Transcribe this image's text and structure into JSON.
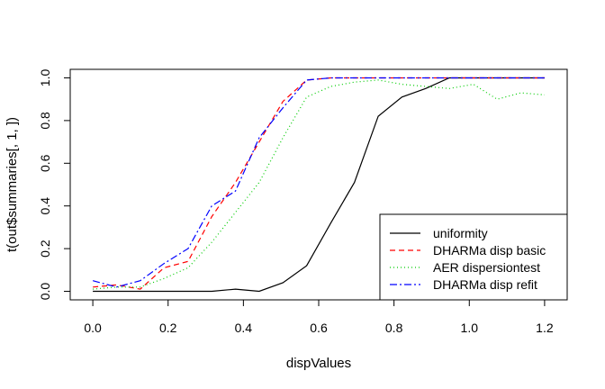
{
  "chart_data": {
    "type": "line",
    "title": "",
    "xlabel": "dispValues",
    "ylabel": "t(out$summaries[, 1, ])",
    "xlim": [
      -0.06,
      1.26
    ],
    "ylim": [
      -0.04,
      1.04
    ],
    "x_ticks": [
      0.0,
      0.2,
      0.4,
      0.6,
      0.8,
      1.0,
      1.2
    ],
    "x_tick_labels": [
      "0.0",
      "0.2",
      "0.4",
      "0.6",
      "0.8",
      "1.0",
      "1.2"
    ],
    "y_ticks": [
      0.0,
      0.2,
      0.4,
      0.6,
      0.8,
      1.0
    ],
    "y_tick_labels": [
      "0.0",
      "0.2",
      "0.4",
      "0.6",
      "0.8",
      "1.0"
    ],
    "grid": false,
    "legend_position": "bottom-right",
    "x": [
      0.0,
      0.063,
      0.126,
      0.189,
      0.253,
      0.316,
      0.379,
      0.442,
      0.505,
      0.568,
      0.632,
      0.695,
      0.758,
      0.821,
      0.884,
      0.947,
      1.011,
      1.074,
      1.137,
      1.2
    ],
    "series": [
      {
        "name": "uniformity",
        "color": "#000000",
        "dash": "",
        "values": [
          0,
          0,
          0,
          0,
          0,
          0,
          0.01,
          0,
          0.04,
          0.12,
          0.32,
          0.51,
          0.82,
          0.91,
          0.95,
          1.0,
          1.0,
          1.0,
          1.0,
          1.0
        ]
      },
      {
        "name": "DHARMa disp basic",
        "color": "#ff0000",
        "dash": "6,4",
        "values": [
          0.02,
          0.03,
          0.01,
          0.11,
          0.14,
          0.35,
          0.51,
          0.7,
          0.89,
          0.99,
          1.0,
          1.0,
          1.0,
          1.0,
          1.0,
          1.0,
          1.0,
          1.0,
          1.0,
          1.0
        ]
      },
      {
        "name": "AER dispersiontest",
        "color": "#00cc00",
        "dash": "1,3",
        "values": [
          0.01,
          0.02,
          0.02,
          0.06,
          0.11,
          0.23,
          0.37,
          0.51,
          0.72,
          0.91,
          0.96,
          0.98,
          0.99,
          0.97,
          0.96,
          0.95,
          0.97,
          0.9,
          0.93,
          0.92
        ]
      },
      {
        "name": "DHARMa disp refit",
        "color": "#0000ff",
        "dash": "8,3,2,3",
        "values": [
          0.05,
          0.02,
          0.05,
          0.13,
          0.2,
          0.4,
          0.47,
          0.72,
          0.86,
          0.99,
          1.0,
          1.0,
          1.0,
          1.0,
          1.0,
          1.0,
          1.0,
          1.0,
          1.0,
          1.0
        ]
      }
    ]
  }
}
